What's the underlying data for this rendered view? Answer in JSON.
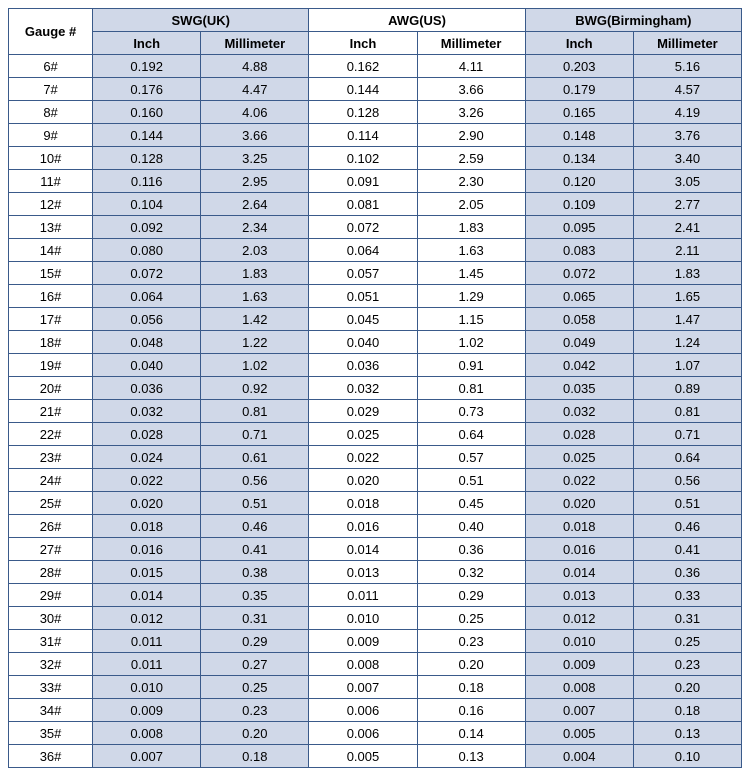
{
  "table": {
    "colors": {
      "shade": "#d0d8e8",
      "white": "#ffffff",
      "border": "#3a5a8a"
    },
    "header": {
      "gauge": "Gauge #",
      "groups": [
        "SWG(UK)",
        "AWG(US)",
        "BWG(Birmingham)"
      ],
      "sub": [
        "Inch",
        "Millimeter",
        "Inch",
        "Millimeter",
        "Inch",
        "Millimeter"
      ]
    },
    "columnShaded": [
      true,
      true,
      true,
      false,
      false,
      true,
      true
    ],
    "rows": [
      {
        "gauge": "6#",
        "v": [
          "0.192",
          "4.88",
          "0.162",
          "4.11",
          "0.203",
          "5.16"
        ]
      },
      {
        "gauge": "7#",
        "v": [
          "0.176",
          "4.47",
          "0.144",
          "3.66",
          "0.179",
          "4.57"
        ]
      },
      {
        "gauge": "8#",
        "v": [
          "0.160",
          "4.06",
          "0.128",
          "3.26",
          "0.165",
          "4.19"
        ]
      },
      {
        "gauge": "9#",
        "v": [
          "0.144",
          "3.66",
          "0.114",
          "2.90",
          "0.148",
          "3.76"
        ]
      },
      {
        "gauge": "10#",
        "v": [
          "0.128",
          "3.25",
          "0.102",
          "2.59",
          "0.134",
          "3.40"
        ]
      },
      {
        "gauge": "11#",
        "v": [
          "0.116",
          "2.95",
          "0.091",
          "2.30",
          "0.120",
          "3.05"
        ]
      },
      {
        "gauge": "12#",
        "v": [
          "0.104",
          "2.64",
          "0.081",
          "2.05",
          "0.109",
          "2.77"
        ]
      },
      {
        "gauge": "13#",
        "v": [
          "0.092",
          "2.34",
          "0.072",
          "1.83",
          "0.095",
          "2.41"
        ]
      },
      {
        "gauge": "14#",
        "v": [
          "0.080",
          "2.03",
          "0.064",
          "1.63",
          "0.083",
          "2.11"
        ]
      },
      {
        "gauge": "15#",
        "v": [
          "0.072",
          "1.83",
          "0.057",
          "1.45",
          "0.072",
          "1.83"
        ]
      },
      {
        "gauge": "16#",
        "v": [
          "0.064",
          "1.63",
          "0.051",
          "1.29",
          "0.065",
          "1.65"
        ]
      },
      {
        "gauge": "17#",
        "v": [
          "0.056",
          "1.42",
          "0.045",
          "1.15",
          "0.058",
          "1.47"
        ]
      },
      {
        "gauge": "18#",
        "v": [
          "0.048",
          "1.22",
          "0.040",
          "1.02",
          "0.049",
          "1.24"
        ]
      },
      {
        "gauge": "19#",
        "v": [
          "0.040",
          "1.02",
          "0.036",
          "0.91",
          "0.042",
          "1.07"
        ]
      },
      {
        "gauge": "20#",
        "v": [
          "0.036",
          "0.92",
          "0.032",
          "0.81",
          "0.035",
          "0.89"
        ]
      },
      {
        "gauge": "21#",
        "v": [
          "0.032",
          "0.81",
          "0.029",
          "0.73",
          "0.032",
          "0.81"
        ]
      },
      {
        "gauge": "22#",
        "v": [
          "0.028",
          "0.71",
          "0.025",
          "0.64",
          "0.028",
          "0.71"
        ]
      },
      {
        "gauge": "23#",
        "v": [
          "0.024",
          "0.61",
          "0.022",
          "0.57",
          "0.025",
          "0.64"
        ]
      },
      {
        "gauge": "24#",
        "v": [
          "0.022",
          "0.56",
          "0.020",
          "0.51",
          "0.022",
          "0.56"
        ]
      },
      {
        "gauge": "25#",
        "v": [
          "0.020",
          "0.51",
          "0.018",
          "0.45",
          "0.020",
          "0.51"
        ]
      },
      {
        "gauge": "26#",
        "v": [
          "0.018",
          "0.46",
          "0.016",
          "0.40",
          "0.018",
          "0.46"
        ]
      },
      {
        "gauge": "27#",
        "v": [
          "0.016",
          "0.41",
          "0.014",
          "0.36",
          "0.016",
          "0.41"
        ]
      },
      {
        "gauge": "28#",
        "v": [
          "0.015",
          "0.38",
          "0.013",
          "0.32",
          "0.014",
          "0.36"
        ]
      },
      {
        "gauge": "29#",
        "v": [
          "0.014",
          "0.35",
          "0.011",
          "0.29",
          "0.013",
          "0.33"
        ]
      },
      {
        "gauge": "30#",
        "v": [
          "0.012",
          "0.31",
          "0.010",
          "0.25",
          "0.012",
          "0.31"
        ]
      },
      {
        "gauge": "31#",
        "v": [
          "0.011",
          "0.29",
          "0.009",
          "0.23",
          "0.010",
          "0.25"
        ]
      },
      {
        "gauge": "32#",
        "v": [
          "0.011",
          "0.27",
          "0.008",
          "0.20",
          "0.009",
          "0.23"
        ]
      },
      {
        "gauge": "33#",
        "v": [
          "0.010",
          "0.25",
          "0.007",
          "0.18",
          "0.008",
          "0.20"
        ]
      },
      {
        "gauge": "34#",
        "v": [
          "0.009",
          "0.23",
          "0.006",
          "0.16",
          "0.007",
          "0.18"
        ]
      },
      {
        "gauge": "35#",
        "v": [
          "0.008",
          "0.20",
          "0.006",
          "0.14",
          "0.005",
          "0.13"
        ]
      },
      {
        "gauge": "36#",
        "v": [
          "0.007",
          "0.18",
          "0.005",
          "0.13",
          "0.004",
          "0.10"
        ]
      }
    ]
  }
}
